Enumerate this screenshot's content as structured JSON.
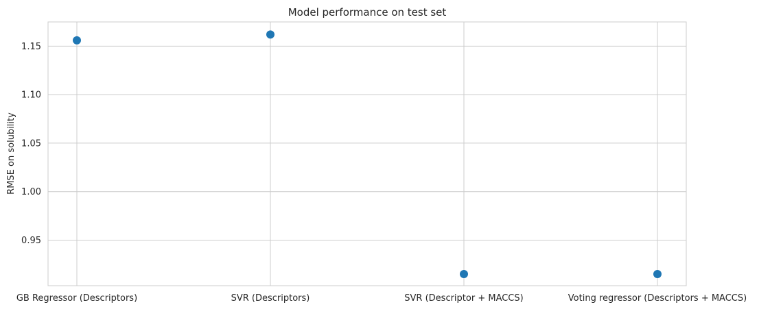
{
  "chart_data": {
    "type": "scatter",
    "title": "Model performance on test set",
    "xlabel": "",
    "ylabel": "RMSE on solubility",
    "categories": [
      "GB Regressor (Descriptors)",
      "SVR (Descriptors)",
      "SVR (Descriptor + MACCS)",
      "Voting regressor (Descriptors + MACCS)"
    ],
    "values": [
      1.156,
      1.162,
      0.915,
      0.915
    ],
    "ylim": [
      0.903,
      1.175
    ],
    "yticks": [
      0.95,
      1.0,
      1.05,
      1.1,
      1.15
    ],
    "ytick_labels": [
      "0.95",
      "1.00",
      "1.05",
      "1.10",
      "1.15"
    ],
    "grid": true,
    "marker_color": "#1f77b4"
  }
}
